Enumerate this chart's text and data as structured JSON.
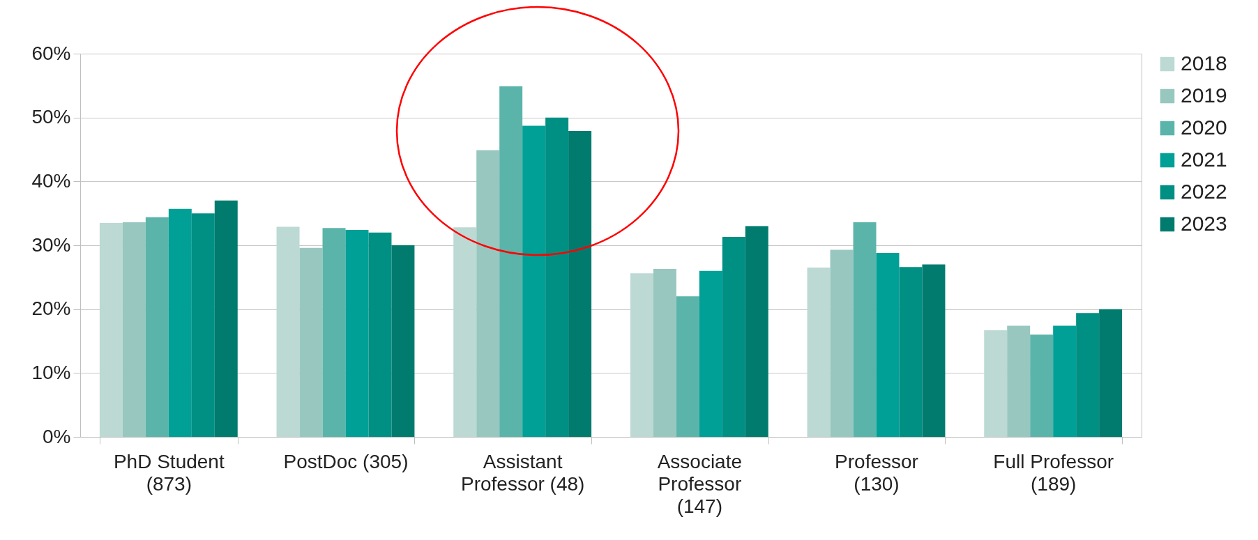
{
  "chart_data": {
    "type": "bar",
    "categories": [
      "PhD Student (873)",
      "PostDoc (305)",
      "Assistant Professor (48)",
      "Associate Professor (147)",
      "Professor (130)",
      "Full Professor (189)"
    ],
    "series": [
      {
        "name": "2018",
        "color": "#bcd9d4",
        "values": [
          33.5,
          32.9,
          32.8,
          25.6,
          26.5,
          16.7
        ]
      },
      {
        "name": "2019",
        "color": "#98c7c0",
        "values": [
          33.6,
          29.6,
          44.9,
          26.3,
          29.3,
          17.4
        ]
      },
      {
        "name": "2020",
        "color": "#5bb4aa",
        "values": [
          34.4,
          32.7,
          54.9,
          22.0,
          33.6,
          16.0
        ]
      },
      {
        "name": "2021",
        "color": "#00a096",
        "values": [
          35.7,
          32.4,
          48.7,
          26.0,
          28.8,
          17.4
        ]
      },
      {
        "name": "2022",
        "color": "#008f83",
        "values": [
          35.0,
          32.0,
          50.0,
          31.3,
          26.6,
          19.4
        ]
      },
      {
        "name": "2023",
        "color": "#027b6f",
        "values": [
          37.0,
          30.0,
          47.9,
          33.0,
          27.0,
          20.0
        ]
      }
    ],
    "ylim": [
      0,
      60
    ],
    "yticks": [
      {
        "value": 0,
        "label": "0%"
      },
      {
        "value": 10,
        "label": "10%"
      },
      {
        "value": 20,
        "label": "20%"
      },
      {
        "value": 30,
        "label": "30%"
      },
      {
        "value": 40,
        "label": "40%"
      },
      {
        "value": 50,
        "label": "50%"
      },
      {
        "value": 60,
        "label": "60%"
      }
    ],
    "grid": "y",
    "legend": "right"
  }
}
